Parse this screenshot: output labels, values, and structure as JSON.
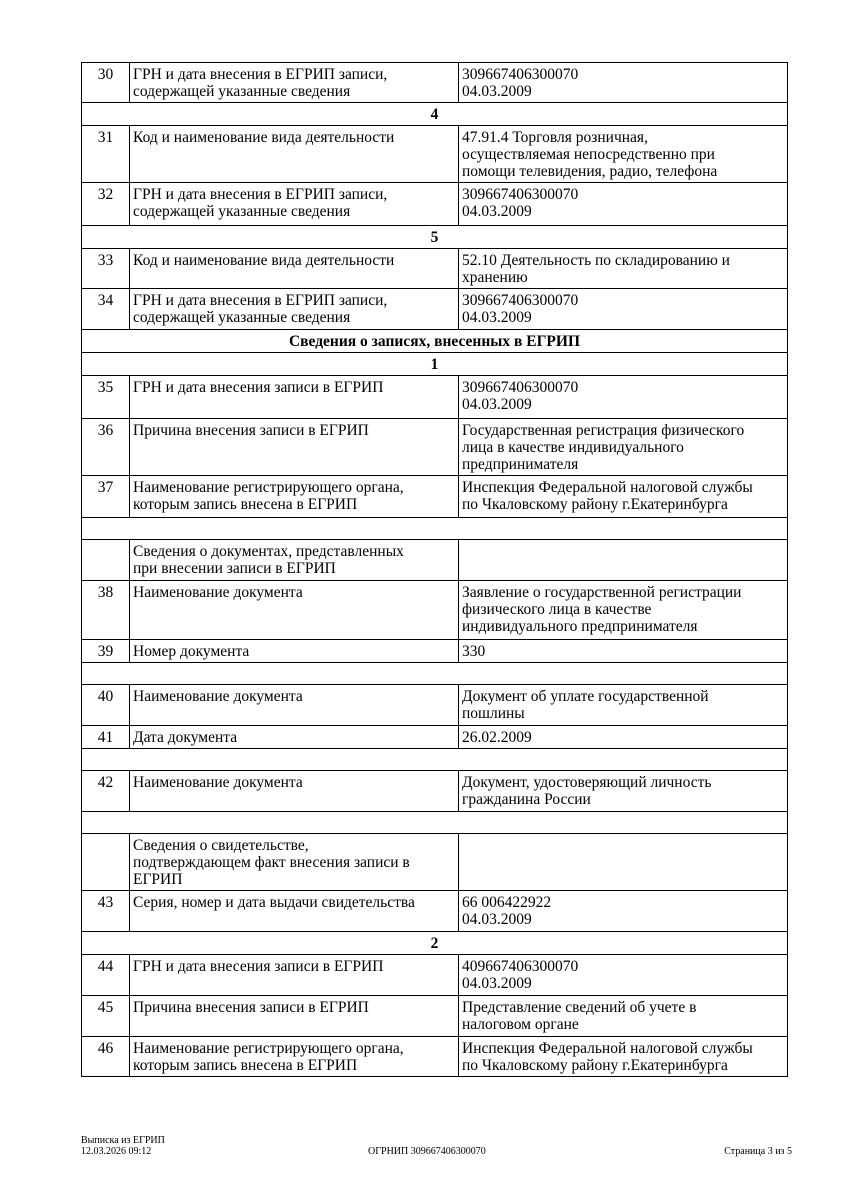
{
  "rows": [
    {
      "type": "row",
      "num": "30",
      "label": "ГРН и дата внесения в ЕГРИП записи,\nсодержащей указанные сведения",
      "value": "309667406300070\n04.03.2009",
      "h": 39
    },
    {
      "type": "sec",
      "text": "4",
      "h": 23
    },
    {
      "type": "row",
      "num": "31",
      "label": "Код и наименование вида деятельности",
      "value": "47.91.4 Торговля розничная,\nосуществляемая непосредственно при\nпомощи телевидения, радио, телефона",
      "h": 57
    },
    {
      "type": "row",
      "num": "32",
      "label": "ГРН и дата внесения в ЕГРИП записи,\nсодержащей указанные сведения",
      "value": "309667406300070\n04.03.2009",
      "h": 43
    },
    {
      "type": "sec",
      "text": "5",
      "h": 22
    },
    {
      "type": "row",
      "num": "33",
      "label": "Код и наименование вида деятельности",
      "value": "52.10 Деятельность по складированию и\nхранению",
      "h": 38
    },
    {
      "type": "row",
      "num": "34",
      "label": "ГРН и дата внесения в ЕГРИП записи,\nсодержащей указанные сведения",
      "value": "309667406300070\n04.03.2009",
      "h": 41
    },
    {
      "type": "sec",
      "text": "Сведения о записях, внесенных в ЕГРИП",
      "h": 23
    },
    {
      "type": "sec",
      "text": "1",
      "h": 22
    },
    {
      "type": "row",
      "num": "35",
      "label": "ГРН и дата внесения записи в ЕГРИП",
      "value": "309667406300070\n04.03.2009",
      "h": 43
    },
    {
      "type": "row",
      "num": "36",
      "label": "Причина внесения записи в ЕГРИП",
      "value": "Государственная регистрация физического\nлица в качестве индивидуального\nпредпринимателя",
      "h": 55
    },
    {
      "type": "row",
      "num": "37",
      "label": "Наименование регистрирующего органа,\nкоторым запись внесена в ЕГРИП",
      "value": "Инспекция Федеральной налоговой службы\nпо Чкаловскому району г.Екатеринбурга",
      "h": 42
    },
    {
      "type": "blank",
      "h": 22
    },
    {
      "type": "row",
      "num": "",
      "label": "Сведения о документах, представленных\nпри внесении записи в ЕГРИП",
      "value": "",
      "h": 41
    },
    {
      "type": "row",
      "num": "38",
      "label": "Наименование документа",
      "value": "Заявление о государственной регистрации\nфизического лица в качестве\nиндивидуального предпринимателя",
      "h": 59
    },
    {
      "type": "row",
      "num": "39",
      "label": "Номер документа",
      "value": "330",
      "h": 22
    },
    {
      "type": "blank",
      "h": 22
    },
    {
      "type": "row",
      "num": "40",
      "label": "Наименование документа",
      "value": "Документ об уплате государственной\nпошлины",
      "h": 41
    },
    {
      "type": "row",
      "num": "41",
      "label": "Дата документа",
      "value": "26.02.2009",
      "h": 23
    },
    {
      "type": "blank",
      "h": 22
    },
    {
      "type": "row",
      "num": "42",
      "label": "Наименование документа",
      "value": "Документ, удостоверяющий личность\nгражданина России",
      "h": 41
    },
    {
      "type": "blank",
      "h": 22
    },
    {
      "type": "row",
      "num": "",
      "label": "Сведения о свидетельстве,\nподтверждающем факт внесения записи в\nЕГРИП",
      "value": "",
      "h": 57
    },
    {
      "type": "row",
      "num": "43",
      "label": "Серия, номер и дата выдачи свидетельства",
      "value": "66 006422922\n04.03.2009",
      "h": 41
    },
    {
      "type": "sec",
      "text": "2",
      "h": 23
    },
    {
      "type": "row",
      "num": "44",
      "label": "ГРН и дата внесения записи в ЕГРИП",
      "value": "409667406300070\n04.03.2009",
      "h": 41
    },
    {
      "type": "row",
      "num": "45",
      "label": "Причина внесения записи в ЕГРИП",
      "value": "Представление сведений об учете в\nналоговом органе",
      "h": 41
    },
    {
      "type": "row",
      "num": "46",
      "label": "Наименование регистрирующего органа,\nкоторым запись внесена в ЕГРИП",
      "value": "Инспекция Федеральной налоговой службы\nпо Чкаловскому району г.Екатеринбурга",
      "h": 40
    }
  ],
  "footer": {
    "doc_title": "Выписка из ЕГРИП",
    "datetime": "12.03.2026 09:12",
    "ogrnip": "ОГРНИП 309667406300070",
    "page": "Страница 3 из 5"
  }
}
